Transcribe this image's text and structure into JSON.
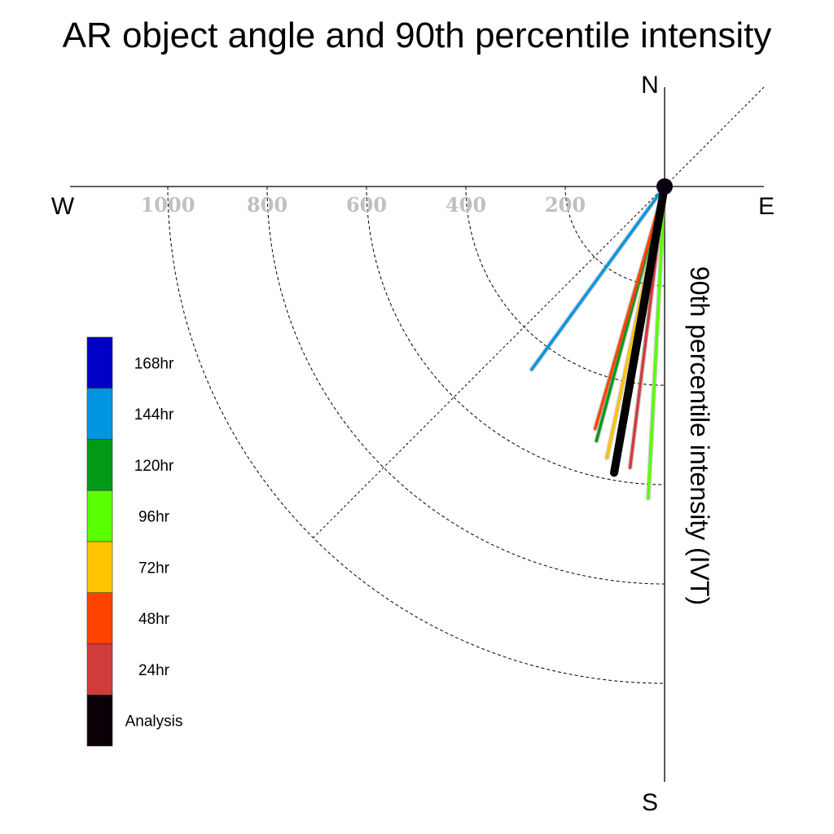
{
  "chart_data": {
    "type": "polar-vector",
    "title": "AR object angle and 90th percentile intensity",
    "radial_label": "90th percentile intensity (IVT)",
    "compass": {
      "north": "N",
      "south": "S",
      "east": "E",
      "west": "W"
    },
    "radial_ticks": [
      200,
      400,
      600,
      800,
      1000
    ],
    "radial_tick_labels": [
      "200",
      "400",
      "600",
      "800",
      "1000"
    ],
    "r_max": 1000,
    "grid": true,
    "legend_position": "left",
    "legend": [
      {
        "label": "168hr",
        "color": "#0000c8"
      },
      {
        "label": "144hr",
        "color": "#0096e1"
      },
      {
        "label": "120hr",
        "color": "#009b14"
      },
      {
        "label": "96hr",
        "color": "#59ff00"
      },
      {
        "label": "72hr",
        "color": "#ffc300"
      },
      {
        "label": "48hr",
        "color": "#ff4400"
      },
      {
        "label": "24hr",
        "color": "#d03c3c"
      },
      {
        "label": "Analysis",
        "color": "#0c0008"
      }
    ],
    "series": [
      {
        "name": "144hr",
        "color": "#0096e1",
        "angle_deg": 216,
        "intensity": 455
      },
      {
        "name": "120hr",
        "color": "#009b14",
        "angle_deg": 195,
        "intensity": 530
      },
      {
        "name": "48hr",
        "color": "#ff4400",
        "angle_deg": 196,
        "intensity": 507
      },
      {
        "name": "72hr",
        "color": "#ffc300",
        "angle_deg": 192,
        "intensity": 558
      },
      {
        "name": "24hr",
        "color": "#d03c3c",
        "angle_deg": 187,
        "intensity": 570
      },
      {
        "name": "96hr",
        "color": "#59ff00",
        "angle_deg": 183,
        "intensity": 628
      },
      {
        "name": "Analysis",
        "color": "#000000",
        "angle_deg": 190,
        "intensity": 585
      }
    ]
  }
}
